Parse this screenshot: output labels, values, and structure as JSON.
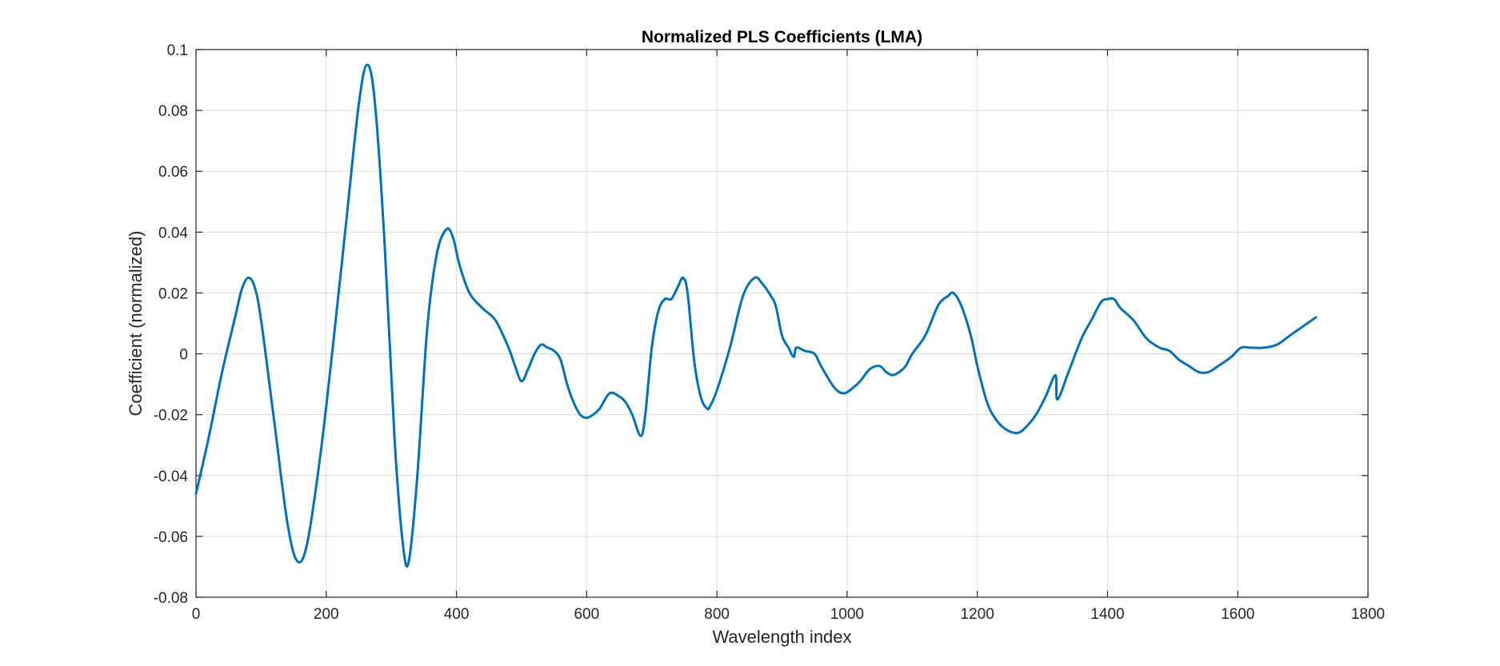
{
  "chart_data": {
    "type": "line",
    "title": "Normalized PLS Coefficients (LMA)",
    "xlabel": "Wavelength index",
    "ylabel": "Coefficient (normalized)",
    "xlim": [
      0,
      1800
    ],
    "ylim": [
      -0.08,
      0.1
    ],
    "xticks": [
      0,
      200,
      400,
      600,
      800,
      1000,
      1200,
      1400,
      1600,
      1800
    ],
    "yticks": [
      -0.08,
      -0.06,
      -0.04,
      -0.02,
      0,
      0.02,
      0.04,
      0.06,
      0.08,
      0.1
    ],
    "xtick_labels": [
      "0",
      "200",
      "400",
      "600",
      "800",
      "1000",
      "1200",
      "1400",
      "1600",
      "1800"
    ],
    "ytick_labels": [
      "-0.08",
      "-0.06",
      "-0.04",
      "-0.02",
      "0",
      "0.02",
      "0.04",
      "0.06",
      "0.08",
      "0.1"
    ],
    "grid": true,
    "line_color": "#0072BD",
    "series": [
      {
        "x": [
          0,
          20,
          40,
          60,
          70,
          80,
          90,
          100,
          120,
          140,
          155,
          170,
          190,
          210,
          230,
          250,
          263,
          275,
          290,
          305,
          318,
          327,
          340,
          355,
          370,
          385,
          395,
          405,
          420,
          440,
          460,
          480,
          490,
          500,
          510,
          520,
          530,
          540,
          550,
          560,
          570,
          580,
          590,
          600,
          610,
          620,
          635,
          650,
          660,
          670,
          683,
          690,
          700,
          710,
          720,
          730,
          740,
          748,
          755,
          765,
          775,
          785,
          790,
          800,
          820,
          840,
          858,
          870,
          880,
          890,
          900,
          910,
          918,
          922,
          935,
          950,
          960,
          980,
          995,
          1010,
          1020,
          1035,
          1050,
          1060,
          1070,
          1080,
          1090,
          1100,
          1120,
          1140,
          1155,
          1163,
          1175,
          1190,
          1200,
          1215,
          1230,
          1245,
          1262,
          1275,
          1290,
          1305,
          1320,
          1323,
          1340,
          1360,
          1375,
          1390,
          1400,
          1410,
          1420,
          1440,
          1460,
          1480,
          1495,
          1510,
          1525,
          1540,
          1555,
          1570,
          1590,
          1605,
          1620,
          1640,
          1660,
          1680,
          1700,
          1720
        ],
        "y": [
          -0.046,
          -0.027,
          -0.006,
          0.012,
          0.021,
          0.025,
          0.022,
          0.011,
          -0.022,
          -0.055,
          -0.068,
          -0.063,
          -0.035,
          0.002,
          0.042,
          0.082,
          0.095,
          0.082,
          0.035,
          -0.028,
          -0.063,
          -0.068,
          -0.04,
          0.008,
          0.033,
          0.041,
          0.038,
          0.029,
          0.02,
          0.015,
          0.011,
          0.002,
          -0.004,
          -0.009,
          -0.005,
          0.0,
          0.003,
          0.002,
          0.001,
          -0.002,
          -0.01,
          -0.016,
          -0.02,
          -0.021,
          -0.02,
          -0.018,
          -0.013,
          -0.014,
          -0.016,
          -0.02,
          -0.027,
          -0.02,
          0.002,
          0.014,
          0.018,
          0.018,
          0.022,
          0.025,
          0.02,
          -0.002,
          -0.014,
          -0.018,
          -0.017,
          -0.012,
          0.002,
          0.019,
          0.025,
          0.023,
          0.02,
          0.016,
          0.006,
          0.002,
          -0.001,
          0.002,
          0.001,
          0.0,
          -0.004,
          -0.011,
          -0.013,
          -0.011,
          -0.009,
          -0.005,
          -0.004,
          -0.006,
          -0.007,
          -0.006,
          -0.004,
          0.0,
          0.006,
          0.016,
          0.019,
          0.02,
          0.016,
          0.006,
          -0.004,
          -0.016,
          -0.022,
          -0.025,
          -0.026,
          -0.024,
          -0.02,
          -0.014,
          -0.007,
          -0.015,
          -0.006,
          0.005,
          0.011,
          0.017,
          0.018,
          0.018,
          0.015,
          0.011,
          0.005,
          0.002,
          0.001,
          -0.002,
          -0.004,
          -0.006,
          -0.006,
          -0.004,
          -0.001,
          0.002,
          0.002,
          0.002,
          0.003,
          0.006,
          0.009,
          0.012
        ]
      }
    ]
  }
}
